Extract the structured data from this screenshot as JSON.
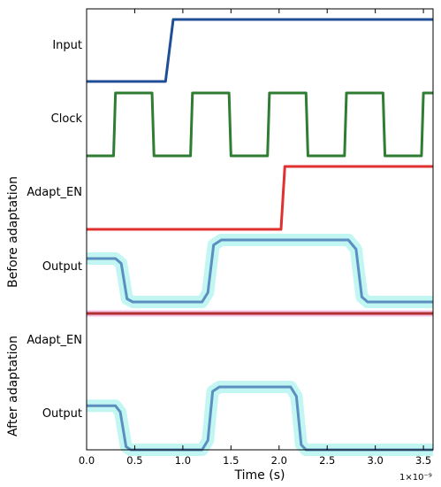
{
  "chart_data": {
    "type": "line",
    "xlabel": "Time (s)",
    "x_multiplier": "1×10⁻⁹",
    "xlim": [
      0.0,
      3.6
    ],
    "x_ticks": [
      0.0,
      0.5,
      1.0,
      1.5,
      2.0,
      2.5,
      3.0,
      3.5
    ],
    "x_tick_labels": [
      "0.0",
      "0.5",
      "1.0",
      "1.5",
      "2.0",
      "2.5",
      "3.0",
      "3.5"
    ],
    "group_labels": [
      "Before adaptation",
      "After adaptation"
    ],
    "series": [
      {
        "name": "Input",
        "color": "#1f4e96",
        "group": 0,
        "points": [
          [
            0.0,
            0
          ],
          [
            0.82,
            0
          ],
          [
            0.9,
            1
          ],
          [
            3.6,
            1
          ]
        ]
      },
      {
        "name": "Clock",
        "color": "#2e7d32",
        "group": 0,
        "points": [
          [
            0.0,
            0
          ],
          [
            0.28,
            0
          ],
          [
            0.3,
            1
          ],
          [
            0.68,
            1
          ],
          [
            0.7,
            0
          ],
          [
            1.08,
            0
          ],
          [
            1.1,
            1
          ],
          [
            1.48,
            1
          ],
          [
            1.5,
            0
          ],
          [
            1.88,
            0
          ],
          [
            1.9,
            1
          ],
          [
            2.28,
            1
          ],
          [
            2.3,
            0
          ],
          [
            2.68,
            0
          ],
          [
            2.7,
            1
          ],
          [
            3.08,
            1
          ],
          [
            3.1,
            0
          ],
          [
            3.48,
            0
          ],
          [
            3.5,
            1
          ],
          [
            3.6,
            1
          ]
        ]
      },
      {
        "name": "Adapt_EN",
        "color": "#e03030",
        "group": 0,
        "points": [
          [
            0.0,
            0
          ],
          [
            2.02,
            0
          ],
          [
            2.06,
            1
          ],
          [
            3.6,
            1
          ]
        ]
      },
      {
        "name": "Output",
        "color": "#5b8fbf",
        "group": 0,
        "points": [
          [
            0.0,
            0.7
          ],
          [
            0.3,
            0.7
          ],
          [
            0.36,
            0.62
          ],
          [
            0.42,
            0.05
          ],
          [
            0.48,
            0
          ],
          [
            1.2,
            0
          ],
          [
            1.26,
            0.15
          ],
          [
            1.32,
            0.92
          ],
          [
            1.4,
            1
          ],
          [
            2.72,
            1
          ],
          [
            2.8,
            0.85
          ],
          [
            2.86,
            0.08
          ],
          [
            2.92,
            0
          ],
          [
            3.6,
            0
          ]
        ]
      },
      {
        "name": "Adapt_EN",
        "color": "#b03030",
        "group": 1,
        "points": [
          [
            0.0,
            0
          ],
          [
            3.6,
            0
          ]
        ]
      },
      {
        "name": "Output",
        "color": "#5b8fbf",
        "group": 1,
        "points": [
          [
            0.0,
            0.7
          ],
          [
            0.3,
            0.7
          ],
          [
            0.35,
            0.6
          ],
          [
            0.41,
            0.05
          ],
          [
            0.46,
            0
          ],
          [
            1.2,
            0
          ],
          [
            1.26,
            0.15
          ],
          [
            1.31,
            0.93
          ],
          [
            1.38,
            1
          ],
          [
            2.12,
            1
          ],
          [
            2.18,
            0.85
          ],
          [
            2.23,
            0.08
          ],
          [
            2.28,
            0
          ],
          [
            3.6,
            0
          ]
        ]
      }
    ]
  }
}
